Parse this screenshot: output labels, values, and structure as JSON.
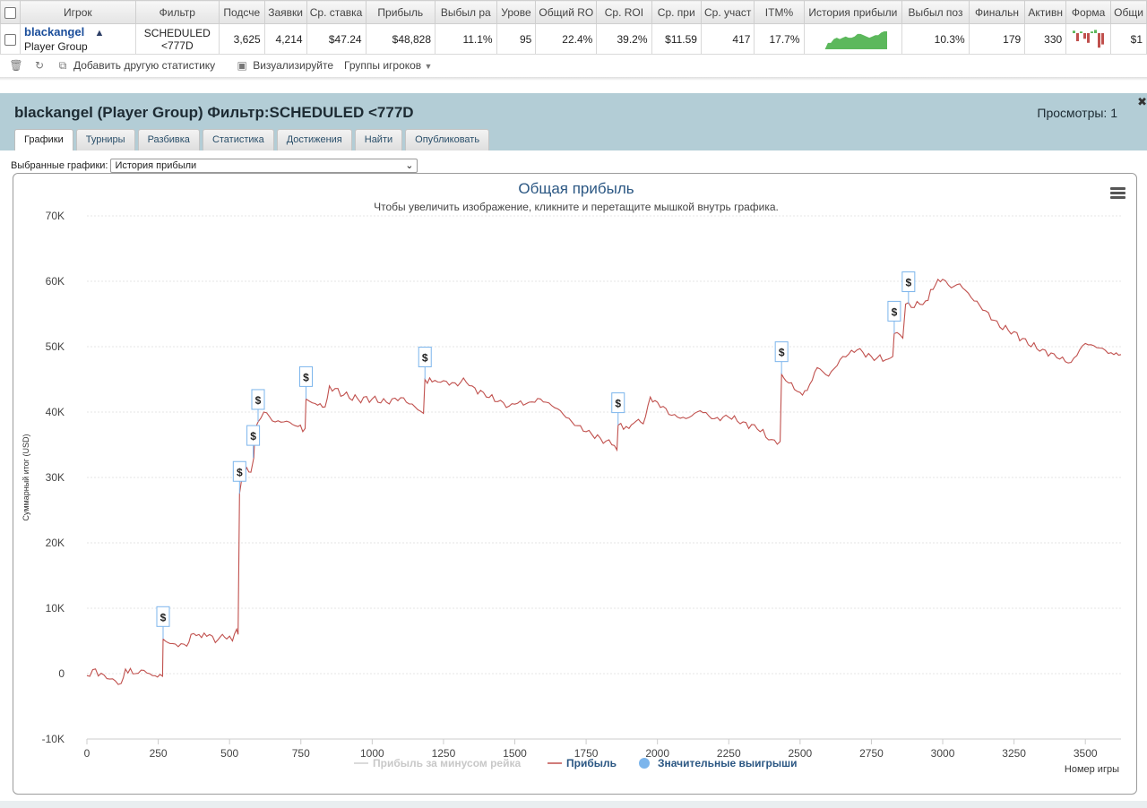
{
  "table": {
    "headers": [
      "Игрок",
      "Фильтр",
      "Подсче",
      "Заявки",
      "Ср. ставка",
      "Прибыль",
      "Выбыл ра",
      "Урове",
      "Общий RO",
      "Ср. ROI",
      "Ср. при",
      "Ср. участ",
      "ITM%",
      "История прибыли",
      "Выбыл поз",
      "Финальн",
      "Активн",
      "Форма",
      "Общи"
    ],
    "row": {
      "player_name": "blackangel",
      "player_group": "Player Group",
      "filter_line1": "SCHEDULED",
      "filter_line2": "<777D",
      "counted": "3,625",
      "entries": "4,214",
      "avg_stake": "$47.24",
      "profit": "$48,828",
      "early_out": "11.1%",
      "level": "95",
      "total_roi": "22.4%",
      "avg_roi": "39.2%",
      "avg_profit": "$11.59",
      "avg_field": "417",
      "itm": "17.7%",
      "late_out": "10.3%",
      "final_tables": "179",
      "active": "330",
      "total_partial": "$1"
    },
    "sparkline_values": [
      0,
      0,
      0,
      5,
      5,
      8,
      9,
      8,
      9,
      10,
      9,
      9,
      10,
      12,
      12,
      11,
      10,
      9,
      10,
      11,
      11,
      13,
      14,
      14
    ],
    "form_bars": [
      0.15,
      -0.5,
      0.1,
      -0.35,
      -0.6,
      0.1,
      0.2,
      -0.9,
      -0.7
    ]
  },
  "toolbar": {
    "add_stat": "Добавить другую статистику",
    "visualize": "Визуализируйте",
    "player_groups": "Группы игроков"
  },
  "panel": {
    "title": "blackangel (Player Group) Фильтр:SCHEDULED <777D",
    "views": "Просмотры: 1",
    "tabs": [
      "Графики",
      "Турниры",
      "Разбивка",
      "Статистика",
      "Достижения",
      "Найти",
      "Опубликовать"
    ],
    "active_tab": "Графики",
    "select_label": "Выбранные графики:",
    "select_value": "История прибыли"
  },
  "colors": {
    "profit_line": "#c0504d",
    "rake_line": "#cfcfcf",
    "big_win_marker": "#7cb5ec",
    "header_bg": "#b3cdd6",
    "link": "#1b4e9b",
    "title_blue": "#2b5783"
  },
  "chart_data": {
    "type": "line",
    "title": "Общая прибыль",
    "subtitle": "Чтобы увеличить изображение, кликните и перетащите мышкой внутрь графика.",
    "xlabel": "Номер игры",
    "ylabel": "Суммарный итог (USD)",
    "xlim": [
      0,
      3625
    ],
    "ylim": [
      -10000,
      70000
    ],
    "x_ticks": [
      0,
      250,
      500,
      750,
      1000,
      1250,
      1500,
      1750,
      2000,
      2250,
      2500,
      2750,
      3000,
      3250,
      3500
    ],
    "y_ticks": [
      -10000,
      0,
      10000,
      20000,
      30000,
      40000,
      50000,
      60000,
      70000
    ],
    "y_tick_labels": [
      "-10K",
      "0",
      "10K",
      "20K",
      "30K",
      "40K",
      "50K",
      "60K",
      "70K"
    ],
    "legend": [
      "Прибыль за минусом рейка",
      "Прибыль",
      "Значительные выигрыши"
    ],
    "legend_position": "bottom",
    "series": [
      {
        "name": "Прибыль",
        "points": [
          [
            0,
            -300
          ],
          [
            20,
            600
          ],
          [
            60,
            -200
          ],
          [
            90,
            -800
          ],
          [
            120,
            -1500
          ],
          [
            135,
            700
          ],
          [
            170,
            0
          ],
          [
            200,
            500
          ],
          [
            230,
            -300
          ],
          [
            265,
            -400
          ],
          [
            267,
            5300
          ],
          [
            300,
            4600
          ],
          [
            350,
            4200
          ],
          [
            365,
            6000
          ],
          [
            420,
            5700
          ],
          [
            460,
            5200
          ],
          [
            475,
            6000
          ],
          [
            490,
            5300
          ],
          [
            510,
            5000
          ],
          [
            525,
            6800
          ],
          [
            530,
            6000
          ],
          [
            535,
            27500
          ],
          [
            545,
            30500
          ],
          [
            560,
            31500
          ],
          [
            575,
            30800
          ],
          [
            585,
            33000
          ],
          [
            590,
            37500
          ],
          [
            600,
            38500
          ],
          [
            620,
            40000
          ],
          [
            660,
            38500
          ],
          [
            700,
            38600
          ],
          [
            740,
            37800
          ],
          [
            765,
            37500
          ],
          [
            768,
            42000
          ],
          [
            800,
            41300
          ],
          [
            835,
            40800
          ],
          [
            850,
            44000
          ],
          [
            900,
            42600
          ],
          [
            950,
            42000
          ],
          [
            1000,
            42000
          ],
          [
            1050,
            41500
          ],
          [
            1100,
            42200
          ],
          [
            1150,
            40800
          ],
          [
            1180,
            39800
          ],
          [
            1185,
            45000
          ],
          [
            1210,
            44600
          ],
          [
            1250,
            44800
          ],
          [
            1300,
            44000
          ],
          [
            1320,
            45200
          ],
          [
            1350,
            44000
          ],
          [
            1400,
            42300
          ],
          [
            1450,
            41800
          ],
          [
            1480,
            40900
          ],
          [
            1500,
            41200
          ],
          [
            1550,
            41500
          ],
          [
            1590,
            42000
          ],
          [
            1650,
            40500
          ],
          [
            1700,
            38500
          ],
          [
            1750,
            37000
          ],
          [
            1800,
            36000
          ],
          [
            1840,
            35000
          ],
          [
            1858,
            34200
          ],
          [
            1862,
            38000
          ],
          [
            1900,
            37500
          ],
          [
            1925,
            38600
          ],
          [
            1950,
            38200
          ],
          [
            1975,
            42300
          ],
          [
            2000,
            41500
          ],
          [
            2050,
            39500
          ],
          [
            2100,
            39000
          ],
          [
            2150,
            40200
          ],
          [
            2200,
            39000
          ],
          [
            2250,
            39200
          ],
          [
            2300,
            38500
          ],
          [
            2350,
            37400
          ],
          [
            2400,
            35800
          ],
          [
            2430,
            35500
          ],
          [
            2435,
            45800
          ],
          [
            2450,
            44800
          ],
          [
            2500,
            43000
          ],
          [
            2525,
            43300
          ],
          [
            2560,
            46800
          ],
          [
            2600,
            45500
          ],
          [
            2650,
            48500
          ],
          [
            2700,
            49500
          ],
          [
            2750,
            48500
          ],
          [
            2800,
            48000
          ],
          [
            2825,
            48500
          ],
          [
            2830,
            52000
          ],
          [
            2860,
            51300
          ],
          [
            2870,
            56500
          ],
          [
            2890,
            56000
          ],
          [
            2940,
            57000
          ],
          [
            2975,
            59500
          ],
          [
            3000,
            60300
          ],
          [
            3030,
            59000
          ],
          [
            3060,
            59600
          ],
          [
            3100,
            57500
          ],
          [
            3150,
            55500
          ],
          [
            3200,
            53000
          ],
          [
            3250,
            52300
          ],
          [
            3300,
            50300
          ],
          [
            3350,
            49600
          ],
          [
            3400,
            48300
          ],
          [
            3450,
            47600
          ],
          [
            3480,
            49500
          ],
          [
            3500,
            50500
          ],
          [
            3550,
            49800
          ],
          [
            3600,
            48800
          ],
          [
            3625,
            48800
          ]
        ]
      }
    ],
    "big_wins": [
      [
        267,
        5300
      ],
      [
        535,
        27500
      ],
      [
        583,
        33000
      ],
      [
        600,
        38500
      ],
      [
        768,
        42000
      ],
      [
        1185,
        45000
      ],
      [
        1862,
        38000
      ],
      [
        2435,
        45800
      ],
      [
        2830,
        52000
      ],
      [
        2880,
        56500
      ]
    ]
  }
}
